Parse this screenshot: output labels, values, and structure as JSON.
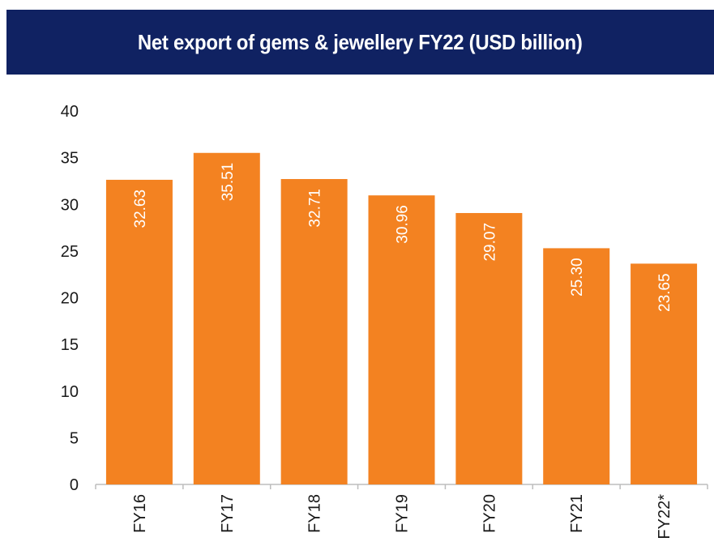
{
  "title": "Net export of gems & jewellery FY22 (USD billion)",
  "colors": {
    "header_bg": "#102262",
    "header_text": "#ffffff",
    "bar": "#f38221",
    "bar_label": "#ffffff",
    "axis_text": "#1a1a1a"
  },
  "chart_data": {
    "type": "bar",
    "title": "Net export of gems & jewellery FY22 (USD billion)",
    "categories": [
      "FY16",
      "FY17",
      "FY18",
      "FY19",
      "FY20",
      "FY21",
      "FY22*"
    ],
    "values": [
      32.63,
      35.51,
      32.71,
      30.96,
      29.07,
      25.3,
      23.65
    ],
    "value_labels": [
      "32.63",
      "35.51",
      "32.71",
      "30.96",
      "29.07",
      "25.30",
      "23.65"
    ],
    "ylim": [
      0,
      40
    ],
    "yticks": [
      0,
      5,
      10,
      15,
      20,
      25,
      30,
      35,
      40
    ],
    "xlabel": "",
    "ylabel": "",
    "grid": false,
    "legend": "none"
  }
}
